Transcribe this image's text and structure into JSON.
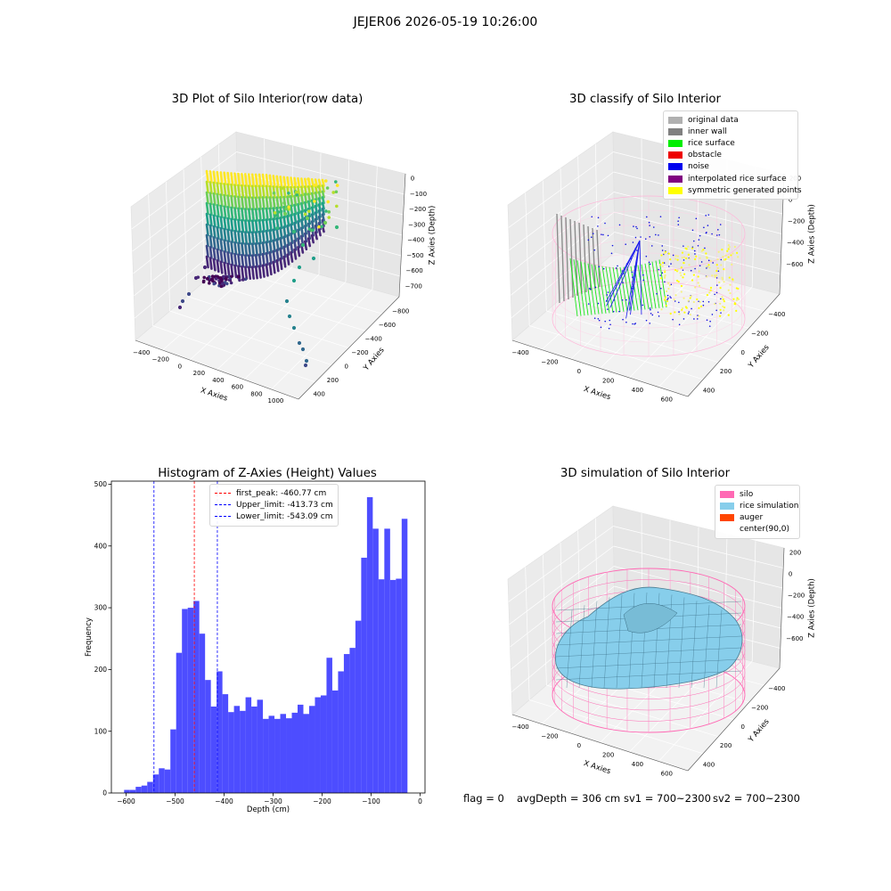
{
  "suptitle": "JEJER06 2026-05-19 10:26:00",
  "panels": {
    "raw": {
      "title": "3D Plot of Silo Interior(row data)",
      "xlabel": "X Axies",
      "ylabel": "Y Axies",
      "zlabel": "Z Axies (Depth)",
      "xticks": [
        "−400",
        "−200",
        "0",
        "200",
        "400",
        "600",
        "800",
        "1000"
      ],
      "yticks": [
        "400",
        "200",
        "0",
        "−200",
        "−400",
        "−600",
        "−800"
      ],
      "zticks": [
        "0",
        "−100",
        "−200",
        "−300",
        "−400",
        "−500",
        "−600",
        "−700"
      ]
    },
    "classify": {
      "title": "3D classify of Silo Interior",
      "xlabel": "X Axies",
      "ylabel": "Y Axies",
      "zlabel": "Z Axies (Depth)",
      "xticks": [
        "−400",
        "−200",
        "0",
        "200",
        "400",
        "600"
      ],
      "yticks": [
        "400",
        "200",
        "0",
        "−200",
        "−400"
      ],
      "zticks": [
        "200",
        "0",
        "−200",
        "−400",
        "−600"
      ],
      "legend": [
        {
          "label": "original data",
          "color": "#b0b0b0"
        },
        {
          "label": "inner wall",
          "color": "#808080"
        },
        {
          "label": "rice surface",
          "color": "#00ee00"
        },
        {
          "label": "obstacle",
          "color": "#ee0000"
        },
        {
          "label": "noise",
          "color": "#0000ee"
        },
        {
          "label": "interpolated rice surface",
          "color": "#800080"
        },
        {
          "label": "symmetric generated points",
          "color": "#ffff00"
        }
      ]
    },
    "simulation": {
      "title": "3D simulation of Silo Interior",
      "xlabel": "X Axies",
      "ylabel": "Y Axies",
      "zlabel": "Z Axies (Depth)",
      "xticks": [
        "−400",
        "−200",
        "0",
        "200",
        "400",
        "600"
      ],
      "yticks": [
        "400",
        "200",
        "0",
        "−200",
        "−400"
      ],
      "zticks": [
        "200",
        "0",
        "−200",
        "−400",
        "−600"
      ],
      "legend": [
        {
          "label": "silo",
          "color": "#ff69b4"
        },
        {
          "label": "rice simulation",
          "color": "#87ceeb"
        },
        {
          "label": "auger",
          "color": "#ff4500"
        },
        {
          "label": "center(90,0)",
          "color": ""
        }
      ]
    },
    "histogram": {
      "title": "Histogram of Z-Axies (Height) Values"
    }
  },
  "chart_data": {
    "type": "bar",
    "title": "Histogram of Z-Axies (Height) Values",
    "xlabel": "Depth (cm)",
    "ylabel": "Frequency",
    "xlim": [
      -630,
      10
    ],
    "ylim": [
      0,
      505
    ],
    "xticks": [
      -600,
      -500,
      -400,
      -300,
      -200,
      -100,
      0
    ],
    "yticks": [
      0,
      100,
      200,
      300,
      400,
      500
    ],
    "bar_color": "#4d4dff",
    "bin_start": -604,
    "bin_width": 11.8,
    "values": [
      5,
      5,
      10,
      12,
      18,
      30,
      40,
      38,
      103,
      227,
      298,
      300,
      311,
      258,
      183,
      140,
      197,
      160,
      131,
      141,
      133,
      155,
      140,
      151,
      120,
      125,
      120,
      128,
      121,
      130,
      143,
      128,
      141,
      155,
      158,
      219,
      166,
      197,
      225,
      235,
      279,
      381,
      479,
      428,
      346,
      428,
      345,
      347,
      444
    ],
    "vlines": [
      {
        "label": "first_peak: -460.77 cm",
        "x": -460.77,
        "color": "#ff0000"
      },
      {
        "label": "Upper_limit: -413.73 cm",
        "x": -413.73,
        "color": "#0000ff"
      },
      {
        "label": "Lower_limit: -543.09 cm",
        "x": -543.09,
        "color": "#0000ff"
      }
    ],
    "legend": "upper-center"
  },
  "footer": {
    "flag": "flag = 0",
    "avg": "avgDepth = 306 cm",
    "sv1": "sv1 = 700~2300",
    "sv2": "sv2 = 700~2300"
  }
}
